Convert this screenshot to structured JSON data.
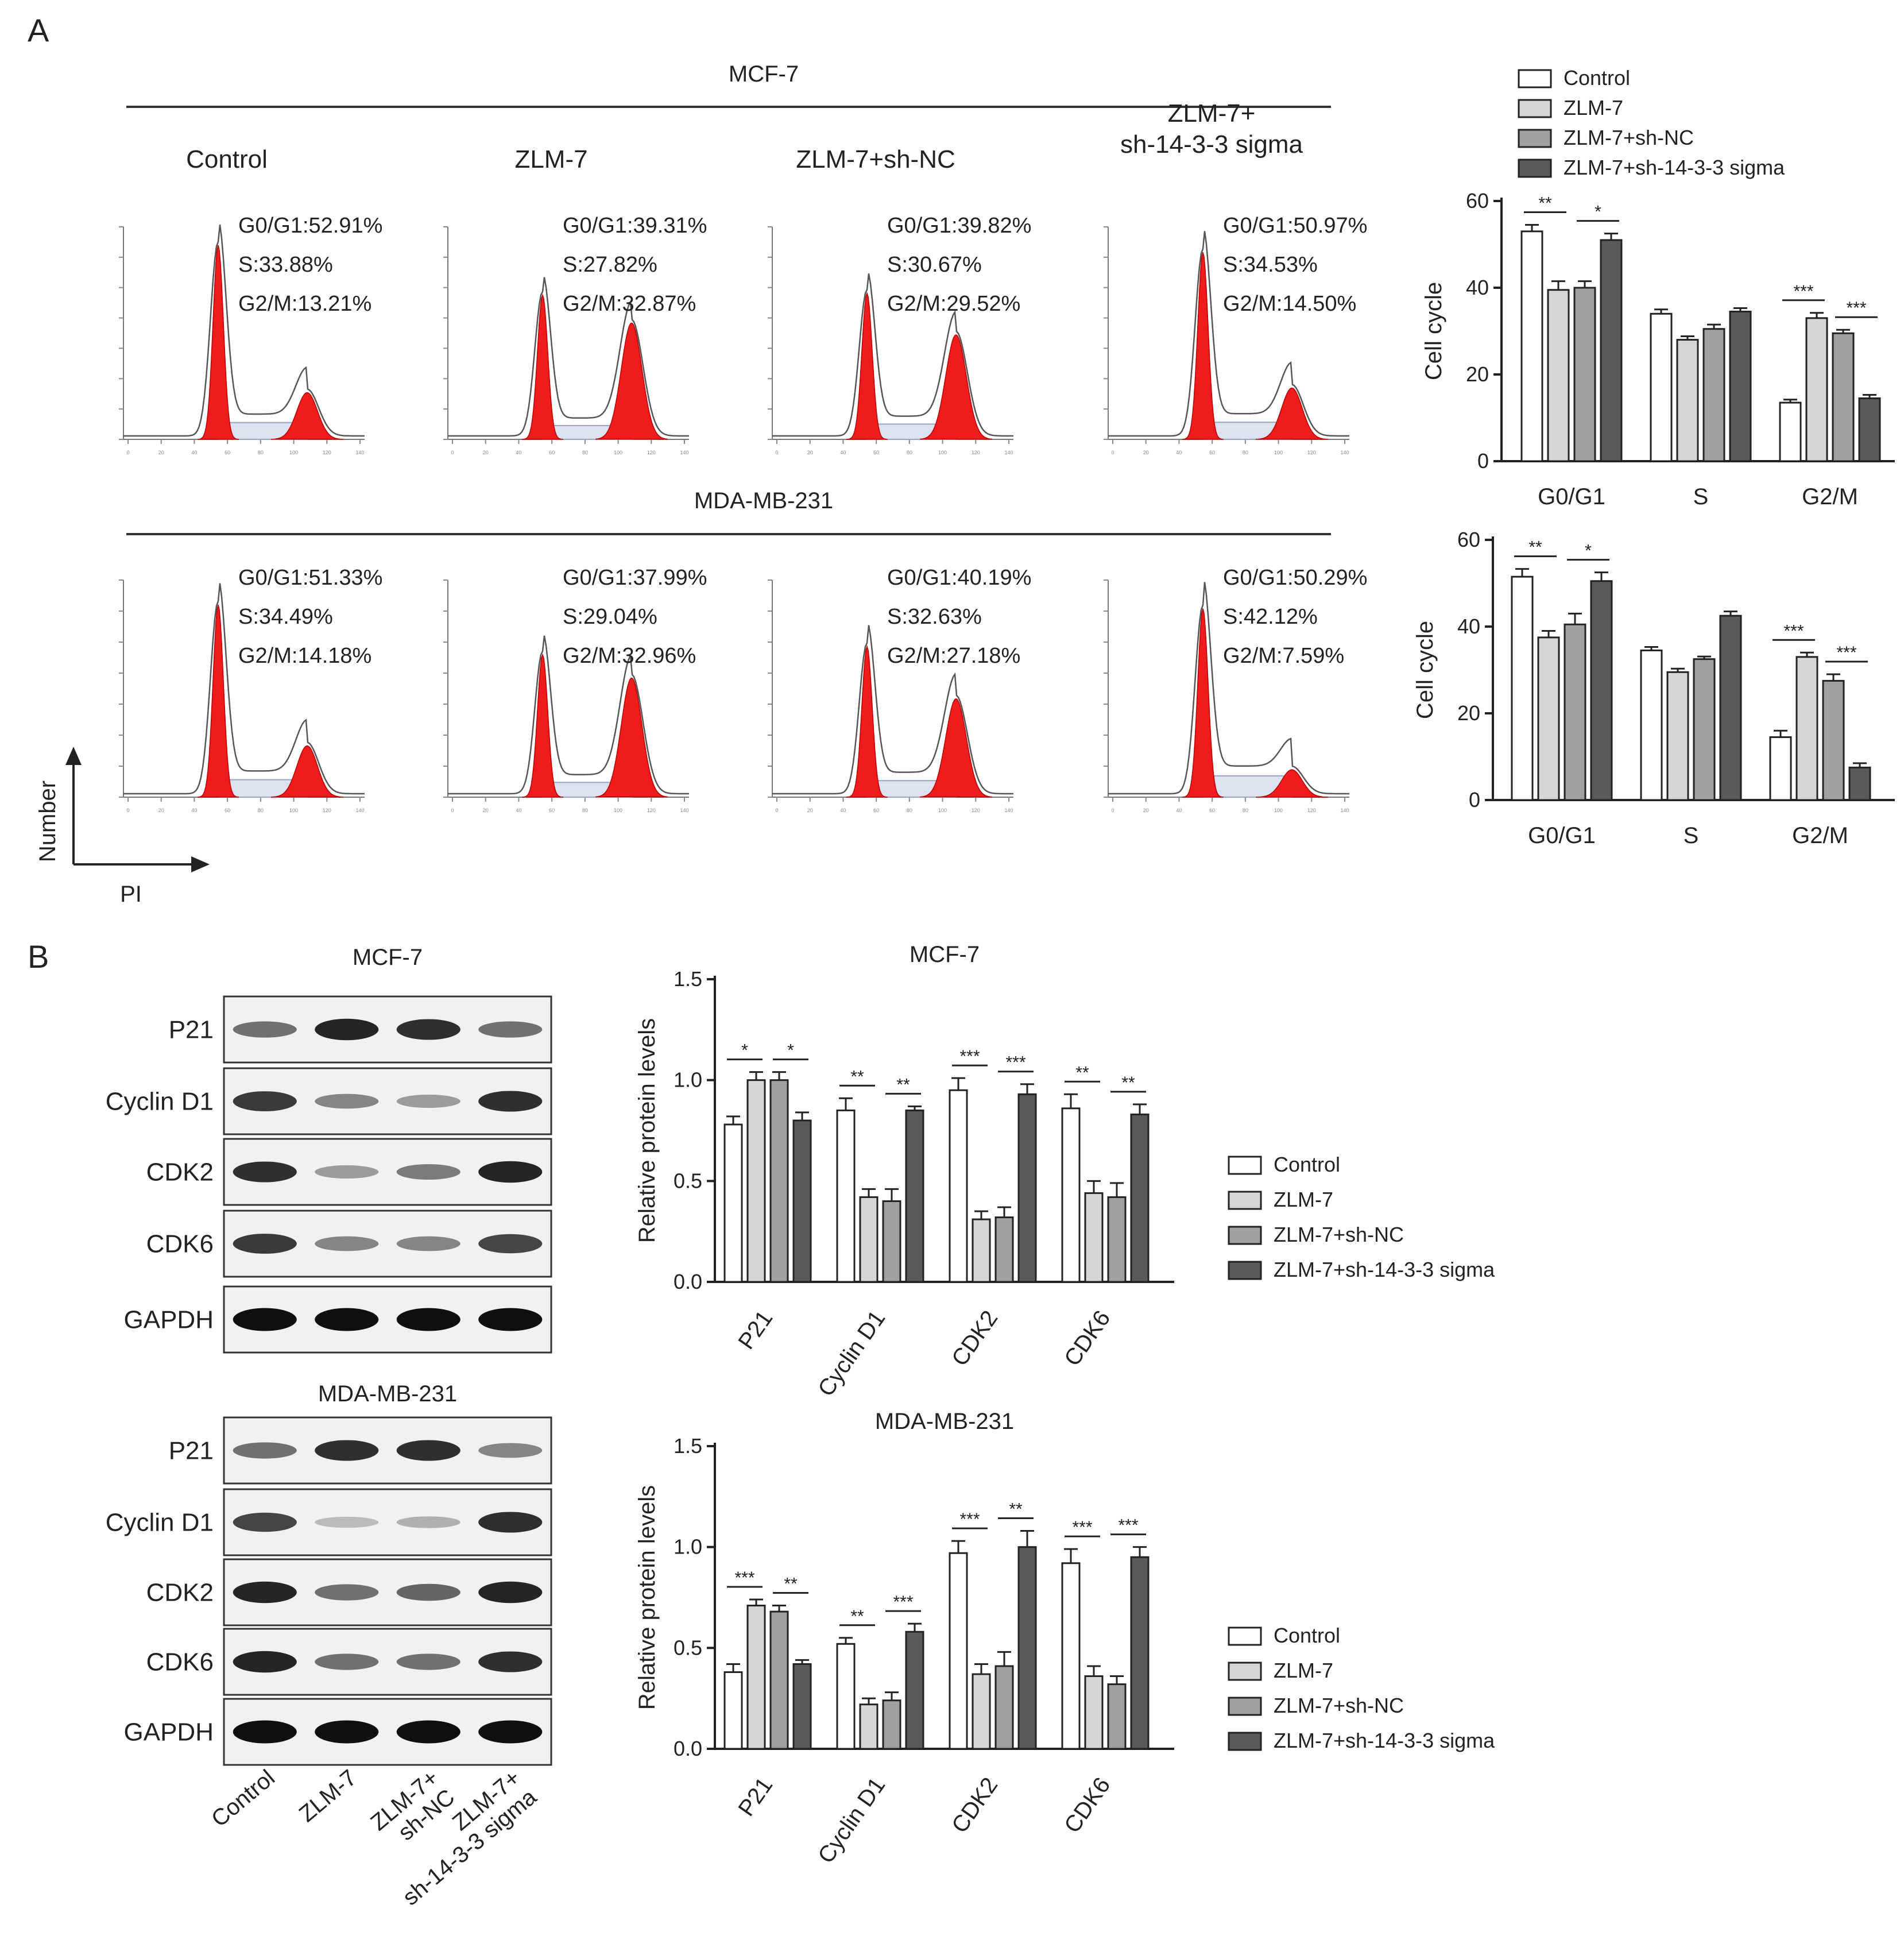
{
  "panel_labels": [
    "A",
    "B"
  ],
  "flow": {
    "groups": [
      {
        "title": "MCF-7",
        "conditions": [
          "Control",
          "ZLM-7",
          "ZLM-7+sh-NC",
          "ZLM-7+\nsh-14-3-3 sigma"
        ],
        "annotations": [
          [
            "G0/G1:52.91%",
            "S:33.88%",
            "G2/M:13.21%"
          ],
          [
            "G0/G1:39.31%",
            "S:27.82%",
            "G2/M:32.87%"
          ],
          [
            "G0/G1:39.82%",
            "S:30.67%",
            "G2/M:29.52%"
          ],
          [
            "G0/G1:50.97%",
            "S:34.53%",
            "G2/M:14.50%"
          ]
        ]
      },
      {
        "title": "MDA-MB-231",
        "conditions": [],
        "annotations": [
          [
            "G0/G1:51.33%",
            "S:34.49%",
            "G2/M:14.18%"
          ],
          [
            "G0/G1:37.99%",
            "S:29.04%",
            "G2/M:32.96%"
          ],
          [
            "G0/G1:40.19%",
            "S:32.63%",
            "G2/M:27.18%"
          ],
          [
            "G0/G1:50.29%",
            "S:42.12%",
            "G2/M:7.59%"
          ]
        ]
      }
    ],
    "axis_y_label": "Number",
    "axis_x_label": "PI",
    "x_ticks": [
      "0",
      "20",
      "40",
      "60",
      "80",
      "100",
      "120",
      "140"
    ]
  },
  "legend_labels": [
    "Control",
    "ZLM-7",
    "ZLM-7+sh-NC",
    "ZLM-7+sh-14-3-3 sigma"
  ],
  "series_colors": [
    "#ffffff",
    "#d6d6d6",
    "#a0a0a0",
    "#5a5a5a"
  ],
  "flow_fill_color": "#ee1c1c",
  "western": {
    "groups": [
      {
        "title": "MCF-7",
        "proteins": [
          "P21",
          "Cyclin D1",
          "CDK2",
          "CDK6",
          "GAPDH"
        ]
      },
      {
        "title": "MDA-MB-231",
        "proteins": [
          "P21",
          "Cyclin D1",
          "CDK2",
          "CDK6",
          "GAPDH"
        ]
      }
    ],
    "lane_labels": [
      "Control",
      "ZLM-7",
      "ZLM-7+\nsh-NC",
      "ZLM-7+\nsh-14-3-3 sigma"
    ]
  },
  "chart_data": [
    {
      "type": "bar",
      "categories": [
        "G0/G1",
        "S",
        "G2/M"
      ],
      "ylabel": "Cell cycle",
      "ylim": [
        0,
        60
      ],
      "yticks": [
        "0",
        "20",
        "40",
        "60"
      ],
      "series": [
        {
          "name": "Control",
          "values": [
            53,
            34,
            13.5
          ],
          "errors": [
            1.5,
            1,
            0.7
          ]
        },
        {
          "name": "ZLM-7",
          "values": [
            39.5,
            28,
            33
          ],
          "errors": [
            2,
            0.8,
            1.2
          ]
        },
        {
          "name": "ZLM-7+sh-NC",
          "values": [
            40,
            30.5,
            29.5
          ],
          "errors": [
            1.5,
            1,
            0.8
          ]
        },
        {
          "name": "ZLM-7+sh-14-3-3 sigma",
          "values": [
            51,
            34.5,
            14.5
          ],
          "errors": [
            1.5,
            0.8,
            0.8
          ]
        }
      ],
      "significance": [
        {
          "category": 0,
          "from": 0,
          "to": 1,
          "label": "**"
        },
        {
          "category": 0,
          "from": 2,
          "to": 3,
          "label": "*"
        },
        {
          "category": 2,
          "from": 0,
          "to": 1,
          "label": "***"
        },
        {
          "category": 2,
          "from": 2,
          "to": 3,
          "label": "***"
        }
      ]
    },
    {
      "type": "bar",
      "categories": [
        "G0/G1",
        "S",
        "G2/M"
      ],
      "ylabel": "Cell cycle",
      "ylim": [
        0,
        60
      ],
      "yticks": [
        "0",
        "20",
        "40",
        "60"
      ],
      "series": [
        {
          "name": "Control",
          "values": [
            51.5,
            34.5,
            14.5
          ],
          "errors": [
            1.8,
            0.8,
            1.5
          ]
        },
        {
          "name": "ZLM-7",
          "values": [
            37.5,
            29.5,
            33
          ],
          "errors": [
            1.5,
            0.8,
            1
          ]
        },
        {
          "name": "ZLM-7+sh-NC",
          "values": [
            40.5,
            32.5,
            27.5
          ],
          "errors": [
            2.5,
            0.6,
            1.5
          ]
        },
        {
          "name": "ZLM-7+sh-14-3-3 sigma",
          "values": [
            50.5,
            42.5,
            7.5
          ],
          "errors": [
            2,
            1,
            1
          ]
        }
      ],
      "significance": [
        {
          "category": 0,
          "from": 0,
          "to": 1,
          "label": "**"
        },
        {
          "category": 0,
          "from": 2,
          "to": 3,
          "label": "*"
        },
        {
          "category": 2,
          "from": 0,
          "to": 1,
          "label": "***"
        },
        {
          "category": 2,
          "from": 2,
          "to": 3,
          "label": "***"
        }
      ]
    },
    {
      "type": "bar",
      "title": "MCF-7",
      "categories": [
        "P21",
        "Cyclin D1",
        "CDK2",
        "CDK6"
      ],
      "ylabel": "Relative protein levels",
      "ylim": [
        0,
        1.5
      ],
      "yticks": [
        "0.0",
        "0.5",
        "1.0",
        "1.5"
      ],
      "series": [
        {
          "name": "Control",
          "values": [
            0.78,
            0.85,
            0.95,
            0.86
          ],
          "errors": [
            0.04,
            0.06,
            0.06,
            0.07
          ]
        },
        {
          "name": "ZLM-7",
          "values": [
            1.0,
            0.42,
            0.31,
            0.44
          ],
          "errors": [
            0.04,
            0.04,
            0.04,
            0.06
          ]
        },
        {
          "name": "ZLM-7+sh-NC",
          "values": [
            1.0,
            0.4,
            0.32,
            0.42
          ],
          "errors": [
            0.04,
            0.06,
            0.05,
            0.07
          ]
        },
        {
          "name": "ZLM-7+sh-14-3-3 sigma",
          "values": [
            0.8,
            0.85,
            0.93,
            0.83
          ],
          "errors": [
            0.04,
            0.02,
            0.05,
            0.05
          ]
        }
      ],
      "significance": [
        {
          "category": 0,
          "from": 0,
          "to": 1,
          "label": "*"
        },
        {
          "category": 0,
          "from": 2,
          "to": 3,
          "label": "*"
        },
        {
          "category": 1,
          "from": 0,
          "to": 1,
          "label": "**"
        },
        {
          "category": 1,
          "from": 2,
          "to": 3,
          "label": "**"
        },
        {
          "category": 2,
          "from": 0,
          "to": 1,
          "label": "***"
        },
        {
          "category": 2,
          "from": 2,
          "to": 3,
          "label": "***"
        },
        {
          "category": 3,
          "from": 0,
          "to": 1,
          "label": "**"
        },
        {
          "category": 3,
          "from": 2,
          "to": 3,
          "label": "**"
        }
      ]
    },
    {
      "type": "bar",
      "title": "MDA-MB-231",
      "categories": [
        "P21",
        "Cyclin D1",
        "CDK2",
        "CDK6"
      ],
      "ylabel": "Relative protein levels",
      "ylim": [
        0,
        1.5
      ],
      "yticks": [
        "0.0",
        "0.5",
        "1.0",
        "1.5"
      ],
      "series": [
        {
          "name": "Control",
          "values": [
            0.38,
            0.52,
            0.97,
            0.92
          ],
          "errors": [
            0.04,
            0.03,
            0.06,
            0.07
          ]
        },
        {
          "name": "ZLM-7",
          "values": [
            0.71,
            0.22,
            0.37,
            0.36
          ],
          "errors": [
            0.03,
            0.03,
            0.05,
            0.05
          ]
        },
        {
          "name": "ZLM-7+sh-NC",
          "values": [
            0.68,
            0.24,
            0.41,
            0.32
          ],
          "errors": [
            0.03,
            0.04,
            0.07,
            0.04
          ]
        },
        {
          "name": "ZLM-7+sh-14-3-3 sigma",
          "values": [
            0.42,
            0.58,
            1.0,
            0.95
          ],
          "errors": [
            0.02,
            0.04,
            0.08,
            0.05
          ]
        }
      ],
      "significance": [
        {
          "category": 0,
          "from": 0,
          "to": 1,
          "label": "***"
        },
        {
          "category": 0,
          "from": 2,
          "to": 3,
          "label": "**"
        },
        {
          "category": 1,
          "from": 0,
          "to": 1,
          "label": "**"
        },
        {
          "category": 1,
          "from": 2,
          "to": 3,
          "label": "***"
        },
        {
          "category": 2,
          "from": 0,
          "to": 1,
          "label": "***"
        },
        {
          "category": 2,
          "from": 2,
          "to": 3,
          "label": "**"
        },
        {
          "category": 3,
          "from": 0,
          "to": 1,
          "label": "***"
        },
        {
          "category": 3,
          "from": 2,
          "to": 3,
          "label": "***"
        }
      ]
    }
  ],
  "western_band_data": [
    [
      [
        0.55,
        0.9,
        0.85,
        0.55
      ],
      [
        0.8,
        0.45,
        0.35,
        0.85
      ],
      [
        0.85,
        0.35,
        0.5,
        0.9
      ],
      [
        0.8,
        0.45,
        0.45,
        0.75
      ],
      [
        1.0,
        1.0,
        1.0,
        1.0
      ]
    ],
    [
      [
        0.55,
        0.85,
        0.85,
        0.45
      ],
      [
        0.75,
        0.2,
        0.25,
        0.85
      ],
      [
        0.9,
        0.55,
        0.6,
        0.9
      ],
      [
        0.9,
        0.55,
        0.55,
        0.85
      ],
      [
        1.0,
        1.0,
        1.0,
        1.0
      ]
    ]
  ]
}
